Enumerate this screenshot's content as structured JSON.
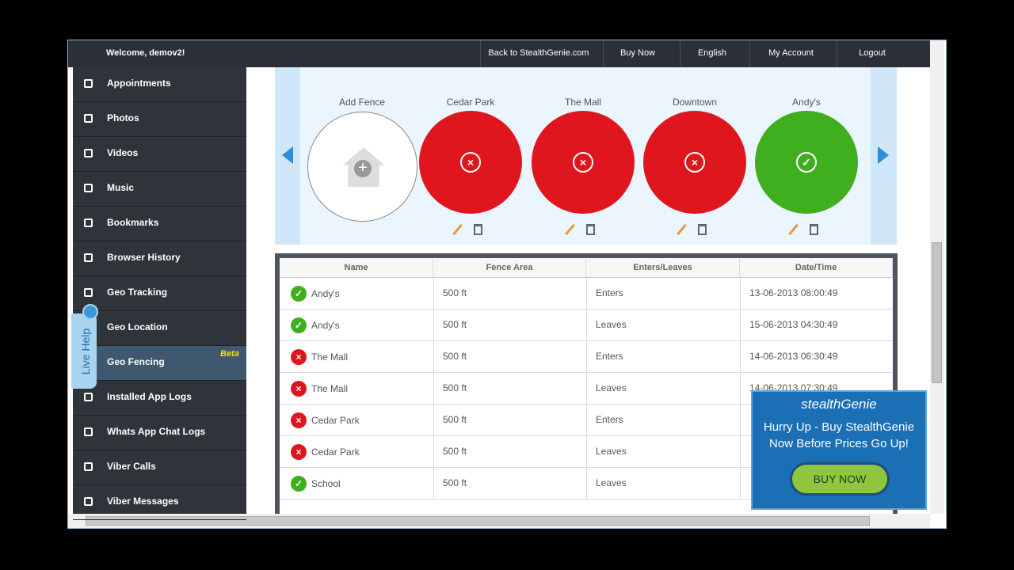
{
  "header": {
    "welcome": "Welcome, demov2!",
    "links": [
      "Back to StealthGenie.com",
      "Buy Now",
      "English",
      "My Account",
      "Logout"
    ]
  },
  "sidebar": {
    "items": [
      "Appointments",
      "Photos",
      "Videos",
      "Music",
      "Bookmarks",
      "Browser History",
      "Geo Tracking",
      "Geo Location",
      "Geo Fencing",
      "Installed App Logs",
      "Whats App Chat Logs",
      "Viber Calls",
      "Viber Messages"
    ],
    "active": 8,
    "badge": "Beta",
    "live_help": "Live Help"
  },
  "fences": {
    "add_label": "Add Fence",
    "items": [
      {
        "name": "Cedar Park",
        "color": "#e0161e"
      },
      {
        "name": "The Mall",
        "color": "#e0161e"
      },
      {
        "name": "Downtown",
        "color": "#e0161e"
      },
      {
        "name": "Andy's",
        "color": "#3fae1f"
      }
    ]
  },
  "table": {
    "columns": [
      "Name",
      "Fence Area",
      "Enters/Leaves",
      "Date/Time"
    ],
    "rows": [
      {
        "color": "#3fae1f",
        "cells": [
          "Andy's",
          "500 ft",
          "Enters",
          "13-06-2013 08:00:49"
        ]
      },
      {
        "color": "#3fae1f",
        "cells": [
          "Andy's",
          "500 ft",
          "Leaves",
          "15-06-2013 04:30:49"
        ]
      },
      {
        "color": "#e0161e",
        "cells": [
          "The Mall",
          "500 ft",
          "Enters",
          "14-06-2013 06:30:49"
        ]
      },
      {
        "color": "#e0161e",
        "cells": [
          "The Mall",
          "500 ft",
          "Leaves",
          "14-06-2013 07:30:49"
        ]
      },
      {
        "color": "#e0161e",
        "cells": [
          "Cedar Park",
          "500 ft",
          "Enters"
        ]
      },
      {
        "color": "#e0161e",
        "cells": [
          "Cedar Park",
          "500 ft",
          "Leaves"
        ]
      },
      {
        "color": "#3fae1f",
        "cells": [
          "School",
          "500 ft",
          "Leaves"
        ]
      }
    ]
  },
  "ad": {
    "brand": "stealthGenie",
    "headline": "Hurry Up - Buy StealthGenie Now Before Prices Go Up!",
    "button": "BUY NOW"
  }
}
